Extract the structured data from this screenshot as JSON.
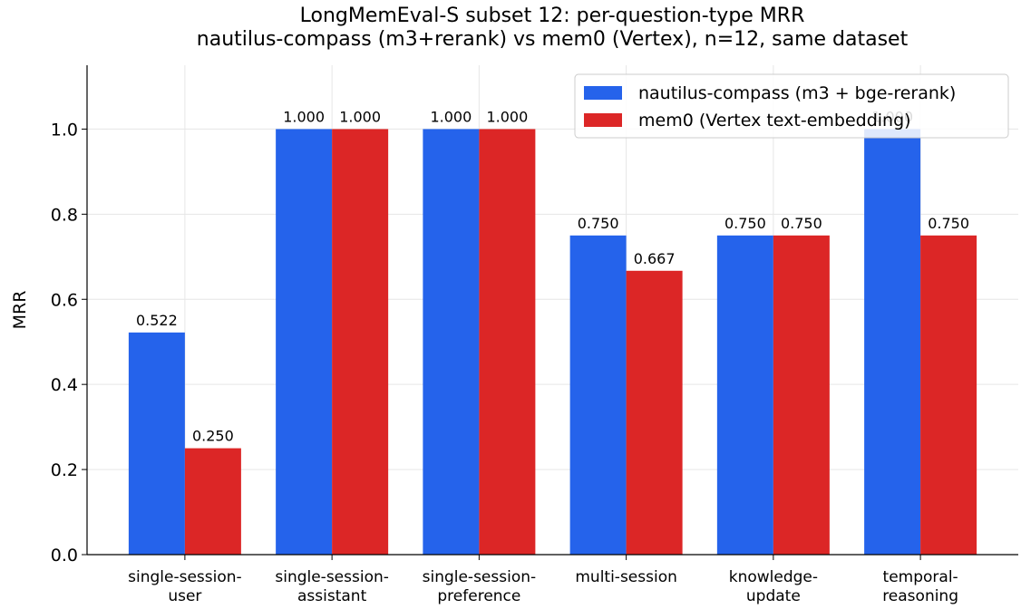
{
  "chart_data": {
    "type": "bar",
    "title": "LongMemEval-S subset 12: per-question-type MRR",
    "subtitle": "nautilus-compass (m3+rerank) vs mem0 (Vertex), n=12, same dataset",
    "ylabel": "MRR",
    "categories": [
      "single-session-\nuser",
      "single-session-\nassistant",
      "single-session-\npreference",
      "multi-session",
      "knowledge-\nupdate",
      "temporal-\nreasoning"
    ],
    "series": [
      {
        "name": "nautilus-compass (m3 + bge-rerank)",
        "color": "#2563eb",
        "values": [
          0.522,
          1.0,
          1.0,
          0.75,
          0.75,
          1.0
        ],
        "value_labels": [
          "0.522",
          "1.000",
          "1.000",
          "0.750",
          "0.750",
          "1.000"
        ]
      },
      {
        "name": "mem0 (Vertex text-embedding)",
        "color": "#dc2626",
        "values": [
          0.25,
          1.0,
          1.0,
          0.667,
          0.75,
          0.75
        ],
        "value_labels": [
          "0.250",
          "1.000",
          "1.000",
          "0.667",
          "0.750",
          "0.750"
        ]
      }
    ],
    "ylim": [
      0,
      1.15
    ],
    "yticks": [
      {
        "value": 0,
        "label": "0.0"
      },
      {
        "value": 0.2,
        "label": "0.2"
      },
      {
        "value": 0.4,
        "label": "0.4"
      },
      {
        "value": 0.6,
        "label": "0.6"
      },
      {
        "value": 0.8,
        "label": "0.8"
      },
      {
        "value": 1,
        "label": "1.0"
      }
    ],
    "grid": true,
    "legend": "upper right"
  }
}
